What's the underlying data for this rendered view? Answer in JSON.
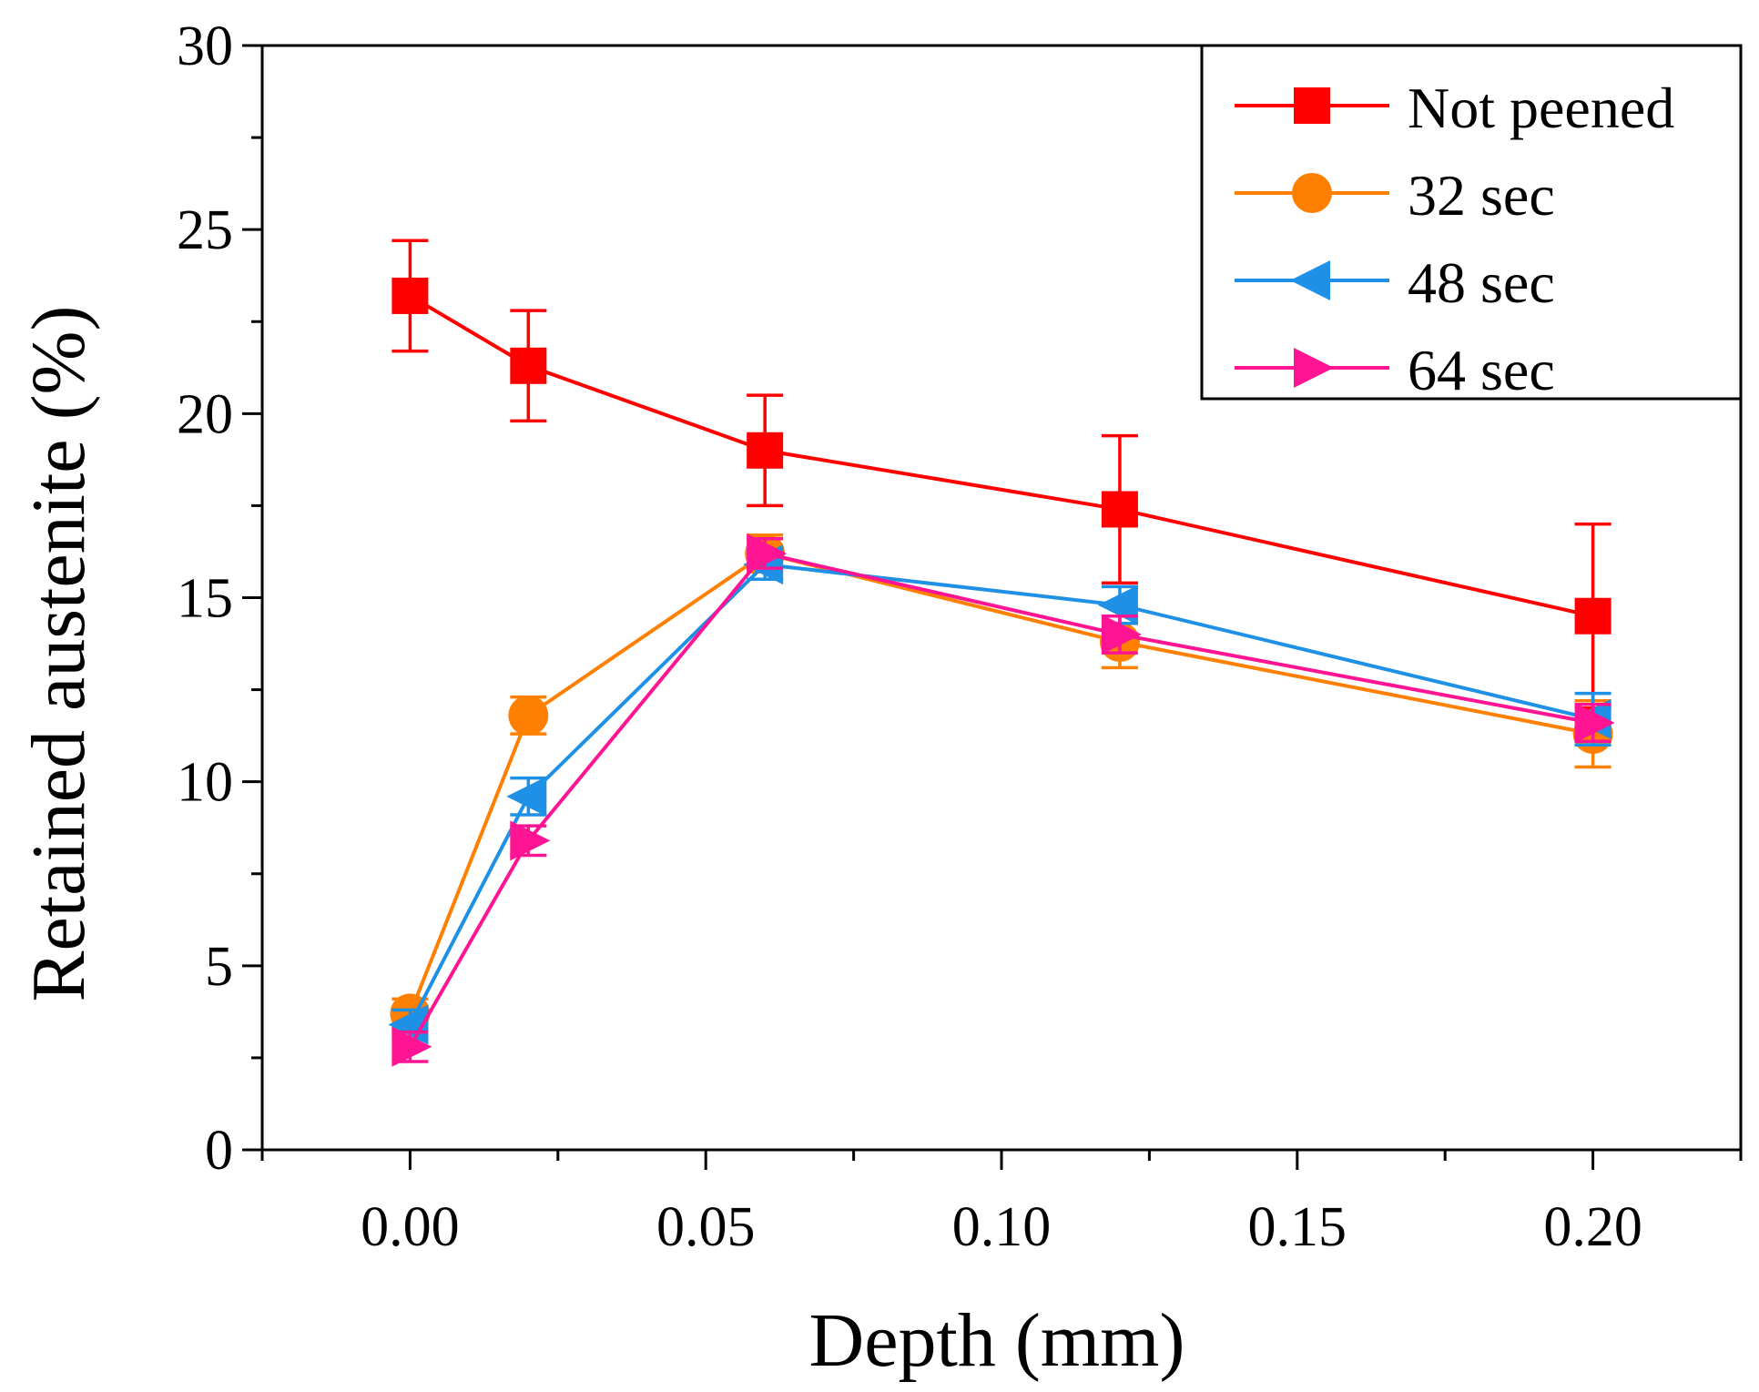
{
  "chart_data": {
    "type": "line",
    "title": "",
    "xlabel": "Depth (mm)",
    "ylabel": "Retained austenite (%)",
    "xlim": [
      -0.025,
      0.225
    ],
    "ylim": [
      0,
      30
    ],
    "xticks": [
      0.0,
      0.05,
      0.1,
      0.15,
      0.2
    ],
    "xtick_labels": [
      "0.00",
      "0.05",
      "0.10",
      "0.15",
      "0.20"
    ],
    "yticks": [
      0,
      5,
      10,
      15,
      20,
      25,
      30
    ],
    "ytick_labels": [
      "0",
      "5",
      "10",
      "15",
      "20",
      "25",
      "30"
    ],
    "legend_position": "top-right",
    "x": [
      0.0,
      0.02,
      0.06,
      0.12,
      0.2
    ],
    "series": [
      {
        "name": "Not peened",
        "color": "#ff0000",
        "marker": "square",
        "values": [
          23.2,
          21.3,
          19.0,
          17.4,
          14.5
        ],
        "errors": [
          1.5,
          1.5,
          1.5,
          2.0,
          2.5
        ]
      },
      {
        "name": "32 sec",
        "color": "#ff8000",
        "marker": "circle",
        "values": [
          3.7,
          11.8,
          16.2,
          13.8,
          11.3
        ],
        "errors": [
          0.4,
          0.5,
          0.5,
          0.7,
          0.9
        ]
      },
      {
        "name": "48 sec",
        "color": "#1e90e6",
        "marker": "triangle-left",
        "values": [
          3.4,
          9.6,
          15.9,
          14.8,
          11.7
        ],
        "errors": [
          0.4,
          0.5,
          0.4,
          0.5,
          0.7
        ]
      },
      {
        "name": "64 sec",
        "color": "#ff1493",
        "marker": "triangle-right",
        "values": [
          2.8,
          8.4,
          16.2,
          14.0,
          11.6
        ],
        "errors": [
          0.4,
          0.4,
          0.4,
          0.5,
          0.5
        ]
      }
    ]
  }
}
